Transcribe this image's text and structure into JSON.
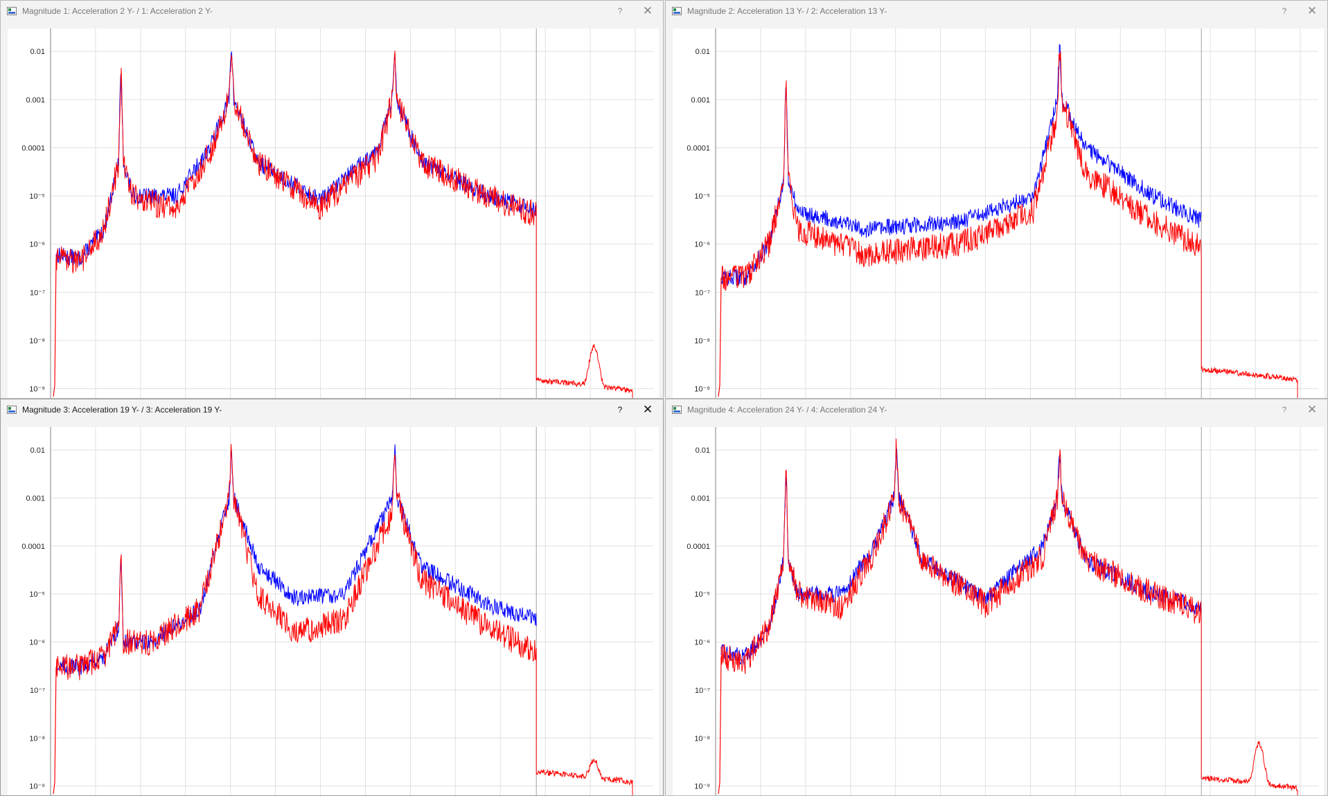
{
  "windows": [
    {
      "id": "w1",
      "title": "Magnitude 1: Acceleration 2 Y- / 1: Acceleration 2 Y-",
      "help_label": "?",
      "close_label": "✕",
      "active": false
    },
    {
      "id": "w2",
      "title": "Magnitude 2: Acceleration 13 Y- / 2: Acceleration 13 Y-",
      "help_label": "?",
      "close_label": "✕",
      "active": false
    },
    {
      "id": "w3",
      "title": "Magnitude 3: Acceleration 19 Y- / 3: Acceleration 19 Y-",
      "help_label": "?",
      "close_label": "✕",
      "active": true
    },
    {
      "id": "w4",
      "title": "Magnitude 4: Acceleration 24 Y- / 4: Acceleration 24 Y-",
      "help_label": "?",
      "close_label": "✕",
      "active": false
    }
  ],
  "y_tick_labels": [
    "0.01",
    "0.001",
    "0.0001",
    "10⁻⁵",
    "10⁻⁶",
    "10⁻⁷",
    "10⁻⁸",
    "10⁻⁹"
  ],
  "colors": {
    "series_blue": "#0000ff",
    "series_red": "#ff0000",
    "grid": "#e0e0e0",
    "axis": "#808080"
  },
  "chart_data": [
    {
      "type": "line",
      "title": "Magnitude 1: Acceleration 2 Y- / 1: Acceleration 2 Y-",
      "yscale": "log",
      "ylim": [
        1e-09,
        0.03
      ],
      "y_ticks": [
        0.01,
        0.001,
        0.0001,
        1e-05,
        1e-06,
        1e-07,
        1e-08,
        1e-09
      ],
      "x_tick_labels": [],
      "grid": true,
      "x": [
        0.0,
        0.05,
        0.1,
        0.13,
        0.135,
        0.14,
        0.16,
        0.25,
        0.32,
        0.36,
        0.365,
        0.37,
        0.42,
        0.55,
        0.67,
        0.7,
        0.705,
        0.71,
        0.76,
        0.9,
        1.0
      ],
      "series": [
        {
          "name": "blue",
          "color": "#0000ff",
          "values": [
            6e-07,
            5e-07,
            2e-06,
            5e-05,
            0.005,
            5e-05,
            1e-05,
            1e-05,
            0.0001,
            0.001,
            0.015,
            0.001,
            5e-05,
            8e-06,
            0.0001,
            0.001,
            0.01,
            0.001,
            5e-05,
            1e-05,
            5e-06
          ]
        },
        {
          "name": "red",
          "color": "#ff0000",
          "values": [
            5e-07,
            4e-07,
            2e-06,
            5e-05,
            0.005,
            5e-05,
            1e-05,
            5e-06,
            8e-05,
            0.001,
            0.015,
            0.001,
            5e-05,
            6e-06,
            6e-05,
            0.001,
            0.01,
            0.001,
            5e-05,
            1e-05,
            4e-06
          ]
        }
      ],
      "tail_red": {
        "x_start": 1.0,
        "level": 1.5e-09,
        "peak_value": 8e-09
      }
    },
    {
      "type": "line",
      "title": "Magnitude 2: Acceleration 13 Y- / 2: Acceleration 13 Y-",
      "yscale": "log",
      "ylim": [
        1e-09,
        0.03
      ],
      "y_ticks": [
        0.01,
        0.001,
        0.0001,
        1e-05,
        1e-06,
        1e-07,
        1e-08,
        1e-09
      ],
      "grid": true,
      "x": [
        0.0,
        0.05,
        0.1,
        0.13,
        0.135,
        0.14,
        0.16,
        0.3,
        0.5,
        0.65,
        0.7,
        0.705,
        0.71,
        0.76,
        0.9,
        1.0
      ],
      "series": [
        {
          "name": "blue",
          "color": "#0000ff",
          "values": [
            2e-07,
            2e-07,
            1e-06,
            2e-05,
            0.003,
            2e-05,
            5e-06,
            2e-06,
            3e-06,
            1e-05,
            0.001,
            0.015,
            0.001,
            0.0001,
            1e-05,
            3e-06
          ]
        },
        {
          "name": "red",
          "color": "#ff0000",
          "values": [
            2e-07,
            2e-07,
            1e-06,
            2e-05,
            0.003,
            2e-05,
            2e-06,
            6e-07,
            1e-06,
            5e-06,
            0.0005,
            0.015,
            0.001,
            3e-05,
            3e-06,
            8e-07
          ]
        }
      ],
      "tail_red": {
        "x_start": 1.0,
        "level": 2.5e-09
      }
    },
    {
      "type": "line",
      "title": "Magnitude 3: Acceleration 19 Y- / 3: Acceleration 19 Y-",
      "yscale": "log",
      "ylim": [
        1e-09,
        0.03
      ],
      "y_ticks": [
        0.01,
        0.001,
        0.0001,
        1e-05,
        1e-06,
        1e-07,
        1e-08,
        1e-09
      ],
      "grid": true,
      "x": [
        0.0,
        0.05,
        0.1,
        0.13,
        0.135,
        0.14,
        0.2,
        0.3,
        0.36,
        0.365,
        0.37,
        0.42,
        0.5,
        0.6,
        0.7,
        0.705,
        0.71,
        0.76,
        0.9,
        1.0
      ],
      "series": [
        {
          "name": "blue",
          "color": "#0000ff",
          "values": [
            3e-07,
            3e-07,
            5e-07,
            2e-06,
            8e-05,
            1e-06,
            1e-06,
            5e-06,
            0.001,
            0.01,
            0.001,
            4e-05,
            8e-06,
            1e-05,
            0.001,
            0.012,
            0.001,
            4e-05,
            6e-06,
            3e-06
          ]
        },
        {
          "name": "red",
          "color": "#ff0000",
          "values": [
            3e-07,
            3e-07,
            5e-07,
            2e-06,
            8e-05,
            1e-06,
            1e-06,
            5e-06,
            0.001,
            0.01,
            0.001,
            1e-05,
            1.5e-06,
            3e-06,
            0.0005,
            0.012,
            0.001,
            2e-05,
            2e-06,
            6e-07
          ]
        }
      ],
      "tail_red": {
        "x_start": 1.0,
        "level": 2e-09,
        "peak_value": 4e-09
      }
    },
    {
      "type": "line",
      "title": "Magnitude 4: Acceleration 24 Y- / 4: Acceleration 24 Y-",
      "yscale": "log",
      "ylim": [
        1e-09,
        0.03
      ],
      "y_ticks": [
        0.01,
        0.001,
        0.0001,
        1e-05,
        1e-06,
        1e-07,
        1e-08,
        1e-09
      ],
      "grid": true,
      "x": [
        0.0,
        0.05,
        0.1,
        0.13,
        0.135,
        0.14,
        0.16,
        0.25,
        0.32,
        0.36,
        0.365,
        0.37,
        0.42,
        0.55,
        0.67,
        0.7,
        0.705,
        0.71,
        0.76,
        0.9,
        1.0
      ],
      "series": [
        {
          "name": "blue",
          "color": "#0000ff",
          "values": [
            6e-07,
            5e-07,
            2e-06,
            5e-05,
            0.005,
            5e-05,
            1e-05,
            1e-05,
            0.0001,
            0.001,
            0.015,
            0.001,
            5e-05,
            8e-06,
            0.0001,
            0.001,
            0.01,
            0.001,
            5e-05,
            1e-05,
            5e-06
          ]
        },
        {
          "name": "red",
          "color": "#ff0000",
          "values": [
            5e-07,
            4e-07,
            2e-06,
            5e-05,
            0.005,
            5e-05,
            1e-05,
            5e-06,
            8e-05,
            0.001,
            0.015,
            0.001,
            5e-05,
            6e-06,
            6e-05,
            0.001,
            0.01,
            0.001,
            5e-05,
            1e-05,
            4e-06
          ]
        }
      ],
      "tail_red": {
        "x_start": 1.0,
        "level": 1.5e-09,
        "peak_value": 8e-09
      }
    }
  ]
}
